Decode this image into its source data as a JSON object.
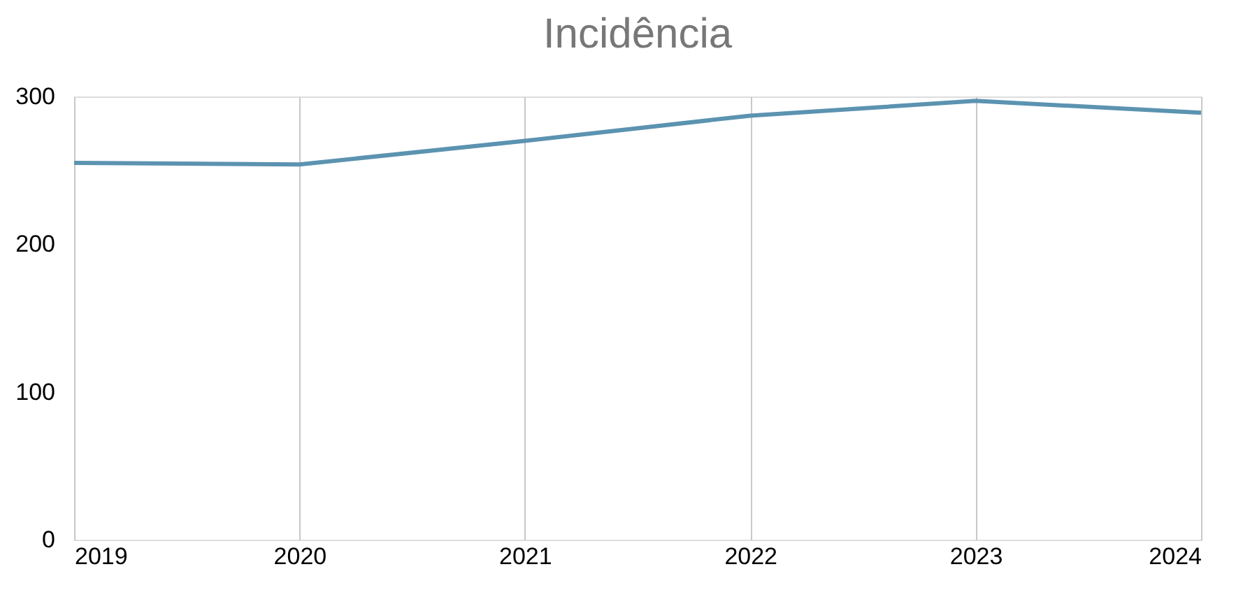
{
  "chart_data": {
    "type": "line",
    "title": "Incidência",
    "categories": [
      "2019",
      "2020",
      "2021",
      "2022",
      "2023",
      "2024"
    ],
    "series": [
      {
        "color": "#5b93b0",
        "values": [
          255,
          254,
          270,
          287,
          297,
          289
        ]
      }
    ],
    "ylim": [
      0,
      300
    ],
    "yticks": [
      0,
      100,
      200,
      300
    ],
    "grid": "x",
    "marker": "none",
    "line_style": "solid"
  }
}
